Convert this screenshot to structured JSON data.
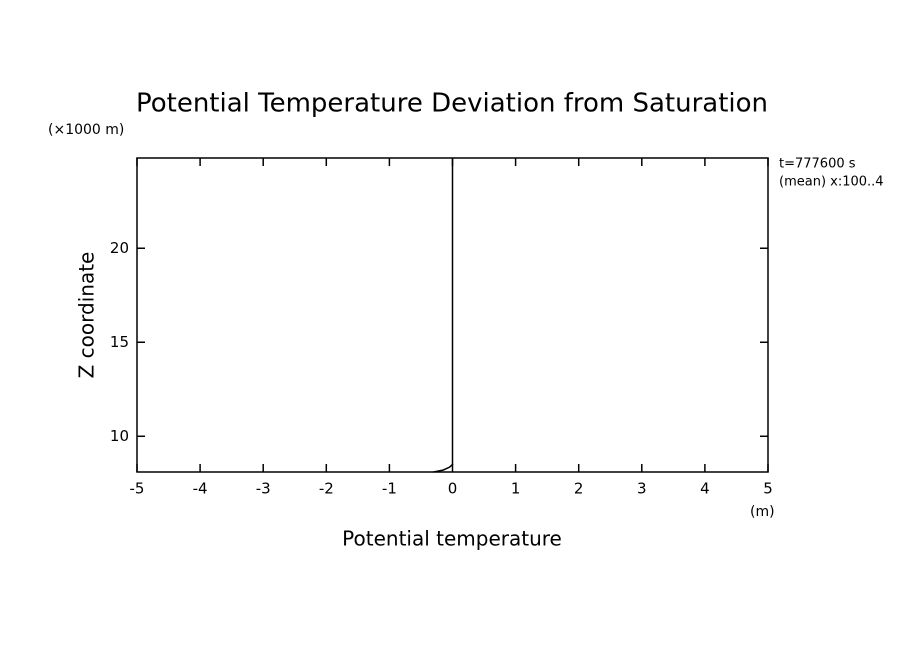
{
  "chart_data": {
    "type": "line",
    "title": "Potential Temperature Deviation from Saturation",
    "y_unit": "(×1000 m)",
    "ylabel": "Z coordinate",
    "xlabel": "Potential temperature",
    "x_unit": "(m)",
    "annotations": [
      "t=777600 s",
      "(mean) x:100..4"
    ],
    "series": [
      {
        "color": "#000000",
        "x": [
          -0.3,
          -0.15,
          -0.05,
          0,
          0,
          0
        ],
        "values": [
          8.1,
          8.2,
          8.35,
          8.5,
          15,
          24.8
        ]
      }
    ],
    "xlim": [
      -5,
      5
    ],
    "xticks": [
      -5,
      -4,
      -3,
      -2,
      -1,
      0,
      1,
      2,
      3,
      4,
      5
    ],
    "ylim": [
      8.1,
      24.8
    ],
    "yticks": [
      10,
      15,
      20
    ]
  }
}
